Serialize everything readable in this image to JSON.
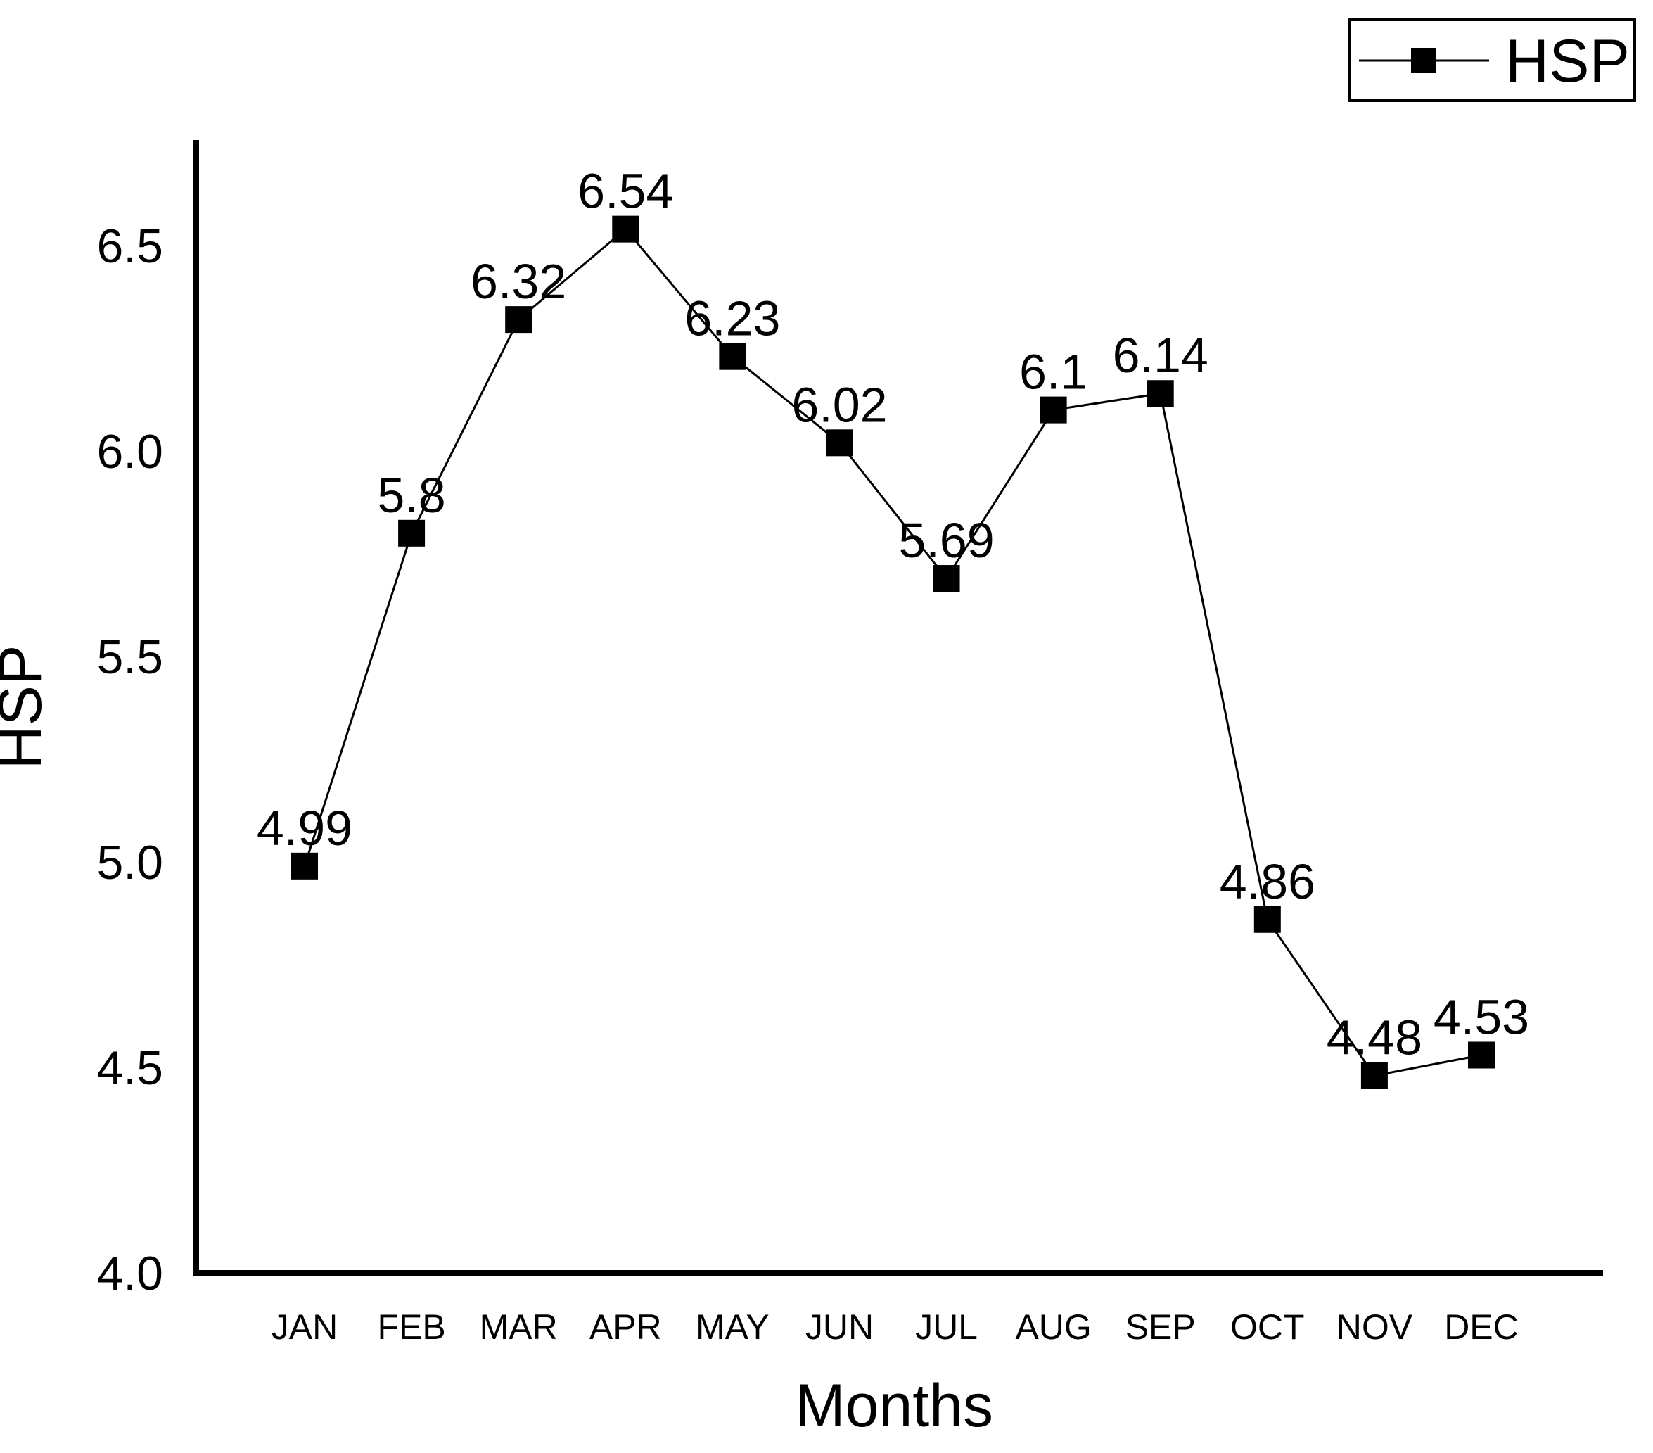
{
  "chart_data": {
    "type": "line",
    "title": "",
    "categories": [
      "JAN",
      "FEB",
      "MAR",
      "APR",
      "MAY",
      "JUN",
      "JUL",
      "AUG",
      "SEP",
      "OCT",
      "NOV",
      "DEC"
    ],
    "series": [
      {
        "name": "HSP",
        "values": [
          4.99,
          5.8,
          6.32,
          6.54,
          6.23,
          6.02,
          5.69,
          6.1,
          6.14,
          4.86,
          4.48,
          4.53
        ],
        "data_labels": [
          "4.99",
          "5.8",
          "6.32",
          "6.54",
          "6.23",
          "6.02",
          "5.69",
          "6.1",
          "6.14",
          "4.86",
          "4.48",
          "4.53"
        ]
      }
    ],
    "xlabel": "Months",
    "ylabel": "HSP",
    "ylim": [
      4.0,
      6.75
    ],
    "yticks": [
      4.0,
      4.5,
      5.0,
      5.5,
      6.0,
      6.5
    ],
    "ytick_labels": [
      "4.0",
      "4.5",
      "5.0",
      "5.5",
      "6.0",
      "6.5"
    ],
    "grid": false,
    "marker": "filled-square",
    "legend": {
      "position": "top-right",
      "entries": [
        "HSP"
      ]
    },
    "colors": {
      "line": "#000000",
      "marker": "#000000",
      "text": "#000000",
      "axis": "#000000",
      "background": "#ffffff"
    }
  }
}
